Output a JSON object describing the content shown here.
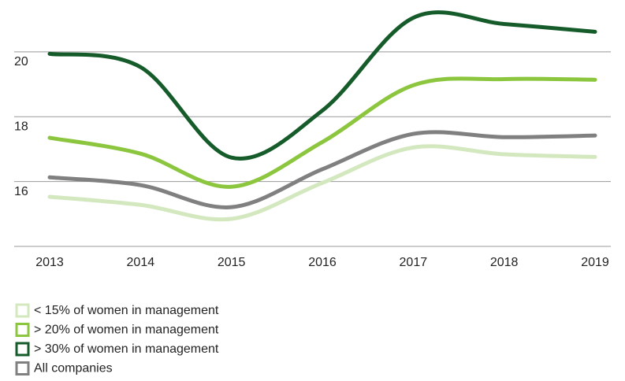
{
  "chart_data": {
    "type": "line",
    "categories": [
      "2013",
      "2014",
      "2015",
      "2016",
      "2017",
      "2018",
      "2019"
    ],
    "series": [
      {
        "name": "< 15% of women in management",
        "color": "#d3e8bf",
        "values": [
          15.53,
          15.28,
          14.85,
          15.96,
          17.05,
          16.84,
          16.76
        ]
      },
      {
        "name": "> 20% of women in management",
        "color": "#8cc63f",
        "values": [
          17.35,
          16.86,
          15.84,
          17.22,
          18.97,
          19.16,
          19.14
        ]
      },
      {
        "name": "> 30% of women in management",
        "color": "#165c2b",
        "values": [
          19.94,
          19.53,
          16.74,
          18.19,
          21.05,
          20.86,
          20.62
        ]
      },
      {
        "name": "All companies",
        "color": "#808080",
        "values": [
          16.13,
          15.89,
          15.21,
          16.38,
          17.47,
          17.37,
          17.42
        ]
      }
    ],
    "ylim": [
      14,
      21.6
    ],
    "yticks": [
      16,
      18,
      20
    ],
    "grid": true
  }
}
